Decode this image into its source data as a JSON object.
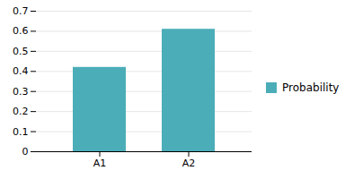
{
  "chart_data": {
    "type": "bar",
    "categories": [
      "A1",
      "A2"
    ],
    "series": [
      {
        "name": "Probability",
        "color": "#4BADB8",
        "values": [
          0.42,
          0.61
        ]
      }
    ],
    "ylim": [
      0,
      0.7
    ],
    "yticks": [
      0,
      0.1,
      0.2,
      0.3,
      0.4,
      0.5,
      0.6,
      0.7
    ],
    "grid": true,
    "legend": "right"
  }
}
